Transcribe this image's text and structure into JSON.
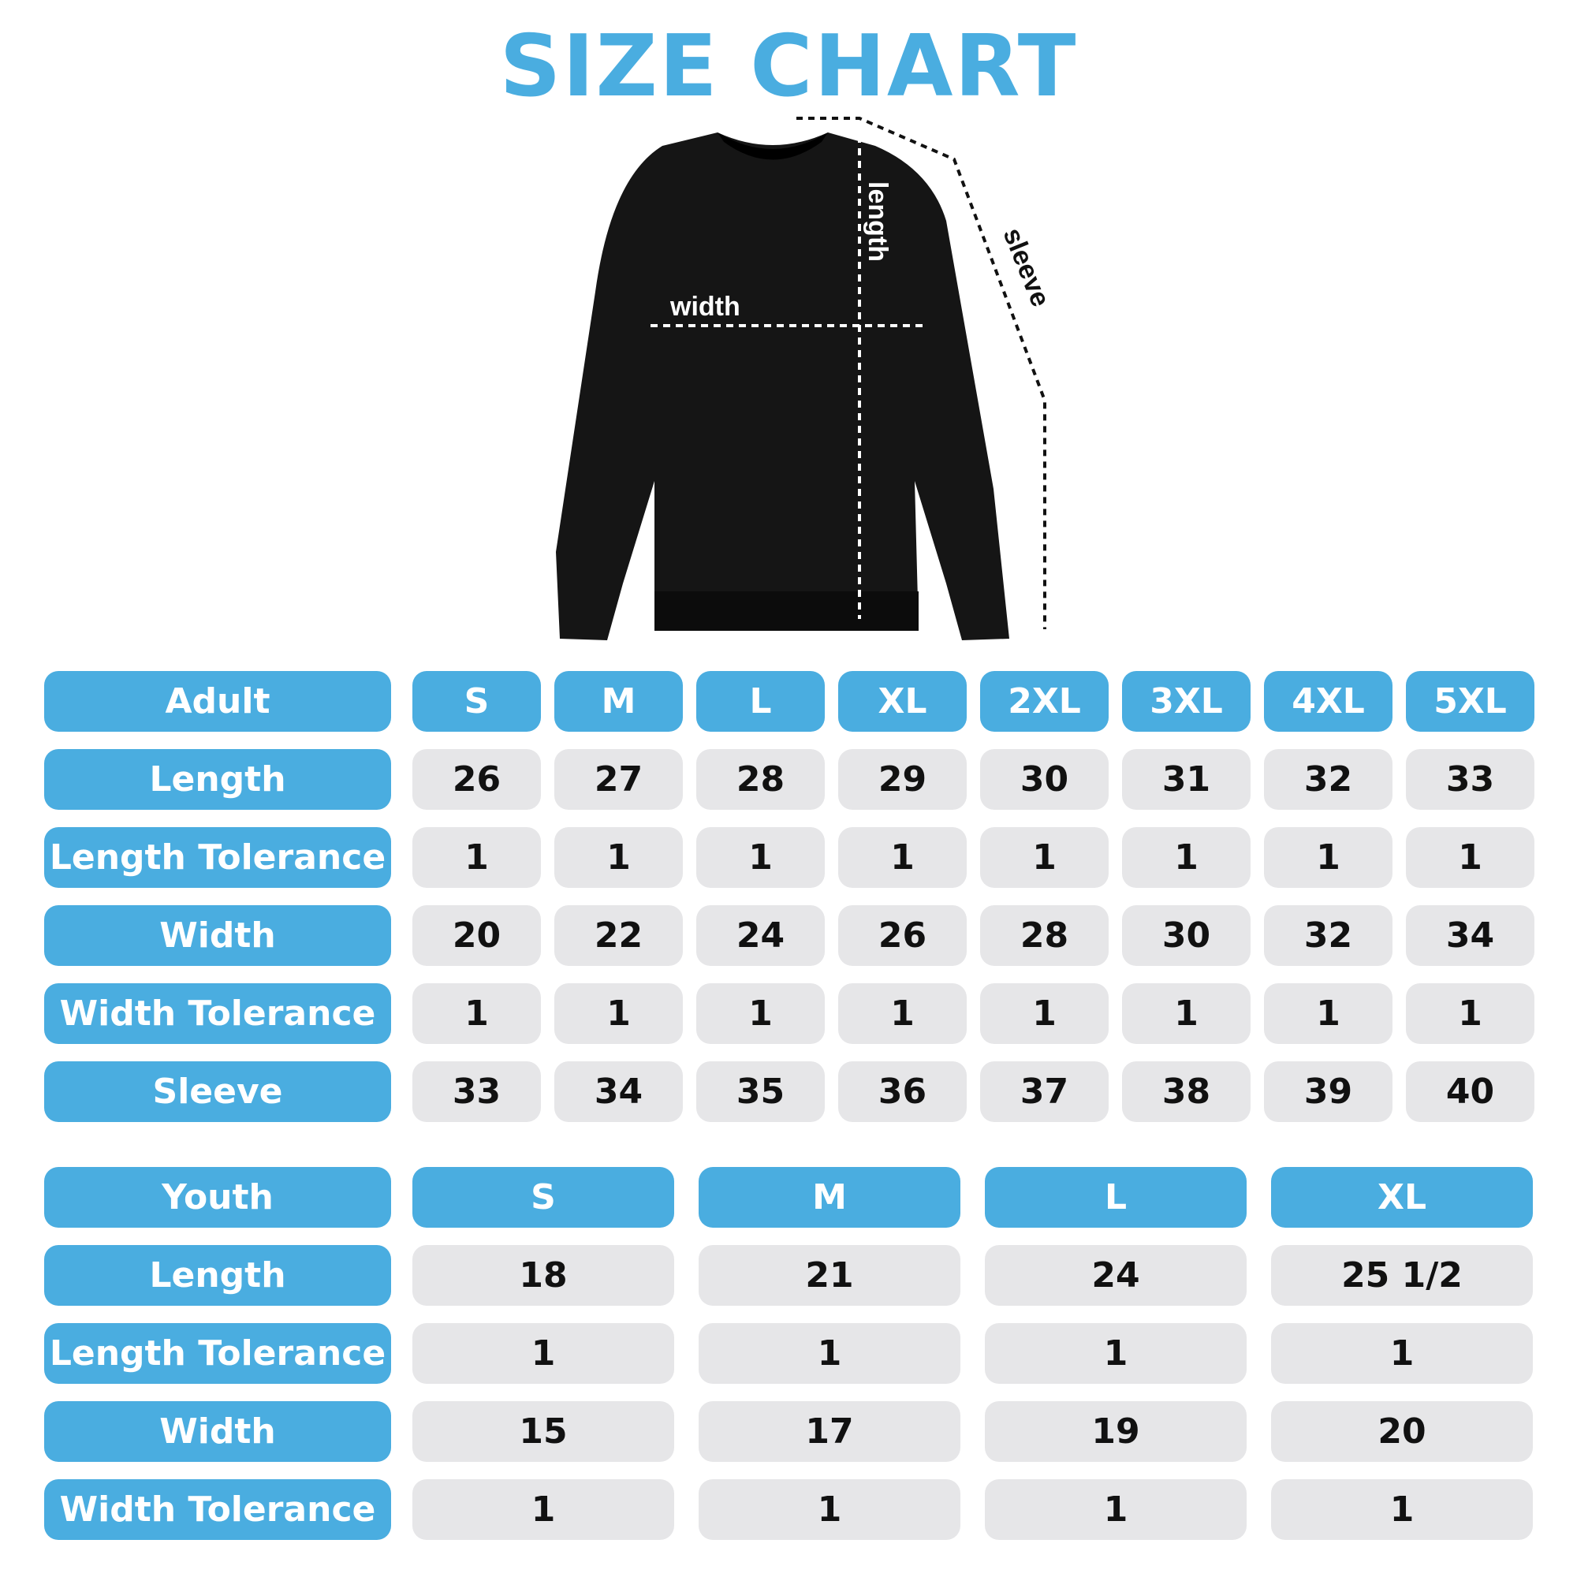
{
  "title": "SIZE CHART",
  "colors": {
    "accent": "#4aade0",
    "cell_bg": "#e6e6e8",
    "text": "#111111"
  },
  "diagram_labels": {
    "width": "width",
    "length": "length",
    "sleeve": "sleeve"
  },
  "adult": {
    "header": "Adult",
    "sizes": [
      "S",
      "M",
      "L",
      "XL",
      "2XL",
      "3XL",
      "4XL",
      "5XL"
    ],
    "rows": [
      {
        "label": "Length",
        "values": [
          "26",
          "27",
          "28",
          "29",
          "30",
          "31",
          "32",
          "33"
        ]
      },
      {
        "label": "Length Tolerance",
        "values": [
          "1",
          "1",
          "1",
          "1",
          "1",
          "1",
          "1",
          "1"
        ]
      },
      {
        "label": "Width",
        "values": [
          "20",
          "22",
          "24",
          "26",
          "28",
          "30",
          "32",
          "34"
        ]
      },
      {
        "label": "Width Tolerance",
        "values": [
          "1",
          "1",
          "1",
          "1",
          "1",
          "1",
          "1",
          "1"
        ]
      },
      {
        "label": "Sleeve",
        "values": [
          "33",
          "34",
          "35",
          "36",
          "37",
          "38",
          "39",
          "40"
        ]
      }
    ]
  },
  "youth": {
    "header": "Youth",
    "sizes": [
      "S",
      "M",
      "L",
      "XL"
    ],
    "rows": [
      {
        "label": "Length",
        "values": [
          "18",
          "21",
          "24",
          "25 1/2"
        ]
      },
      {
        "label": "Length Tolerance",
        "values": [
          "1",
          "1",
          "1",
          "1"
        ]
      },
      {
        "label": "Width",
        "values": [
          "15",
          "17",
          "19",
          "20"
        ]
      },
      {
        "label": "Width Tolerance",
        "values": [
          "1",
          "1",
          "1",
          "1"
        ]
      }
    ]
  }
}
